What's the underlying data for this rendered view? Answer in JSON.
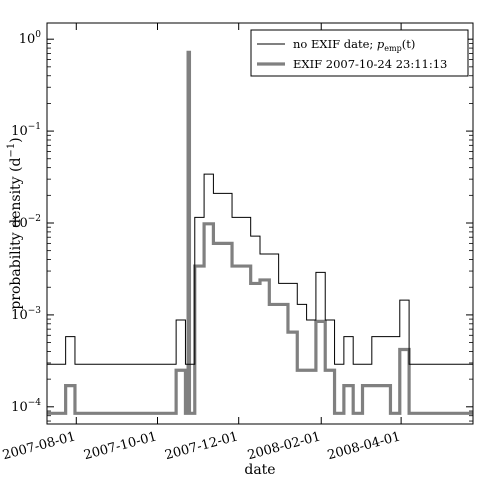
{
  "chart_data": {
    "type": "line",
    "title": "",
    "xlabel": "date",
    "ylabel": "probability density (d",
    "ylabel_sup": "−1",
    "ylabel_close": ")",
    "y_scale": "log",
    "ylim": [
      6.5e-05,
      1.5
    ],
    "xlim": [
      "2007-07-10",
      "2008-05-25"
    ],
    "x_ticks": [
      "2007-08-01",
      "2007-10-01",
      "2007-12-01",
      "2008-02-01",
      "2008-04-01"
    ],
    "y_ticks": [
      {
        "value": 0.0001,
        "base": "10",
        "exp": "−4"
      },
      {
        "value": 0.001,
        "base": "10",
        "exp": "−3"
      },
      {
        "value": 0.01,
        "base": "10",
        "exp": "−2"
      },
      {
        "value": 0.1,
        "base": "10",
        "exp": "−1"
      },
      {
        "value": 1,
        "base": "10",
        "exp": "0"
      }
    ],
    "legend_position": "top-right",
    "grid": false,
    "series": [
      {
        "name": "no EXIF date; p_emp(t)",
        "legend_prefix": "no EXIF date; ",
        "legend_math": "p",
        "legend_sub": "emp",
        "legend_suffix": "(t)",
        "color": "#000000",
        "style": "thin",
        "x": [
          "2007-07-10",
          "2007-07-24",
          "2007-07-31",
          "2007-10-15",
          "2007-10-22",
          "2007-10-29",
          "2007-11-05",
          "2007-11-12",
          "2007-11-19",
          "2007-11-26",
          "2007-12-03",
          "2007-12-10",
          "2007-12-17",
          "2007-12-24",
          "2007-12-31",
          "2008-01-07",
          "2008-01-14",
          "2008-01-21",
          "2008-01-28",
          "2008-02-04",
          "2008-02-11",
          "2008-02-18",
          "2008-02-25",
          "2008-03-03",
          "2008-03-10",
          "2008-03-17",
          "2008-03-24",
          "2008-03-31",
          "2008-04-07",
          "2008-05-25"
        ],
        "y": [
          0.00029,
          0.00058,
          0.00029,
          0.00088,
          0.00029,
          0.0115,
          0.034,
          0.021,
          0.021,
          0.0115,
          0.0115,
          0.0072,
          0.0046,
          0.0046,
          0.0022,
          0.0022,
          0.0013,
          0.00088,
          0.0029,
          0.00088,
          0.00029,
          0.00058,
          0.00029,
          0.00029,
          0.00058,
          0.00058,
          0.00058,
          0.00145,
          0.00029,
          0.00029
        ]
      },
      {
        "name": "EXIF 2007-10-24 23:11:13",
        "legend_text": "EXIF 2007-10-24 23:11:13",
        "color": "#808080",
        "style": "thick",
        "x": [
          "2007-07-10",
          "2007-07-24",
          "2007-07-31",
          "2007-10-15",
          "2007-10-22",
          "2007-10-24",
          "2007-10-25",
          "2007-10-29",
          "2007-11-05",
          "2007-11-12",
          "2007-11-19",
          "2007-11-26",
          "2007-12-03",
          "2007-12-10",
          "2007-12-17",
          "2007-12-24",
          "2007-12-31",
          "2008-01-07",
          "2008-01-14",
          "2008-01-21",
          "2008-01-28",
          "2008-02-04",
          "2008-02-11",
          "2008-02-18",
          "2008-02-25",
          "2008-03-03",
          "2008-03-10",
          "2008-03-17",
          "2008-03-24",
          "2008-03-31",
          "2008-04-07",
          "2008-05-25"
        ],
        "y": [
          8.5e-05,
          0.00017,
          8.5e-05,
          0.00025,
          8.5e-05,
          0.72,
          8.5e-05,
          0.0034,
          0.0098,
          0.006,
          0.006,
          0.0034,
          0.0034,
          0.0022,
          0.0024,
          0.0013,
          0.0013,
          0.00065,
          0.00025,
          0.00025,
          0.00085,
          0.00025,
          8.5e-05,
          0.00017,
          8.5e-05,
          0.00017,
          0.00017,
          0.00017,
          8.5e-05,
          0.00042,
          8.5e-05,
          8.5e-05
        ]
      }
    ]
  }
}
